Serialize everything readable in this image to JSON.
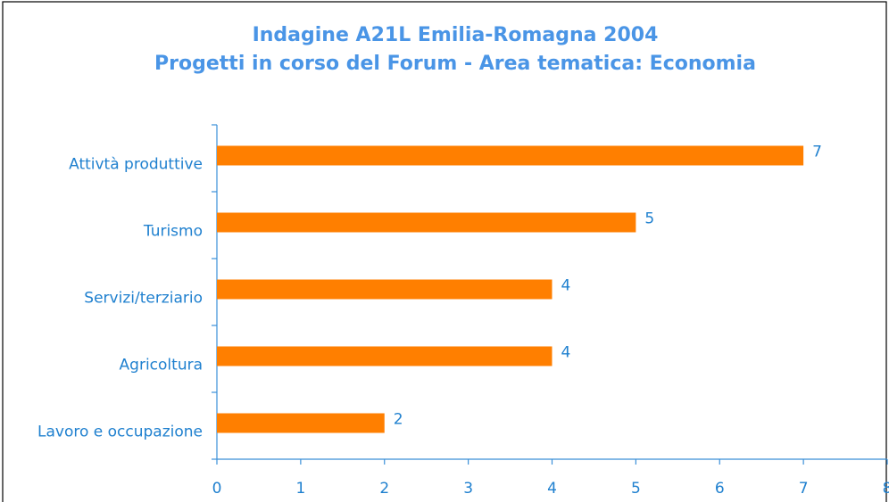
{
  "chart_data": {
    "type": "bar",
    "orientation": "horizontal",
    "title": "Indagine A21L Emilia-Romagna 2004",
    "subtitle": "Progetti in corso del Forum - Area tematica: Economia",
    "categories": [
      "Attivtà produttive",
      "Turismo",
      "Servizi/terziario",
      "Agricoltura",
      "Lavoro e occupazione"
    ],
    "values": [
      7,
      5,
      4,
      4,
      2
    ],
    "color": "#ff7f00",
    "xlim": [
      0,
      8
    ],
    "xticks": [
      0,
      1,
      2,
      3,
      4,
      5,
      6,
      7,
      8
    ],
    "grid": false
  }
}
